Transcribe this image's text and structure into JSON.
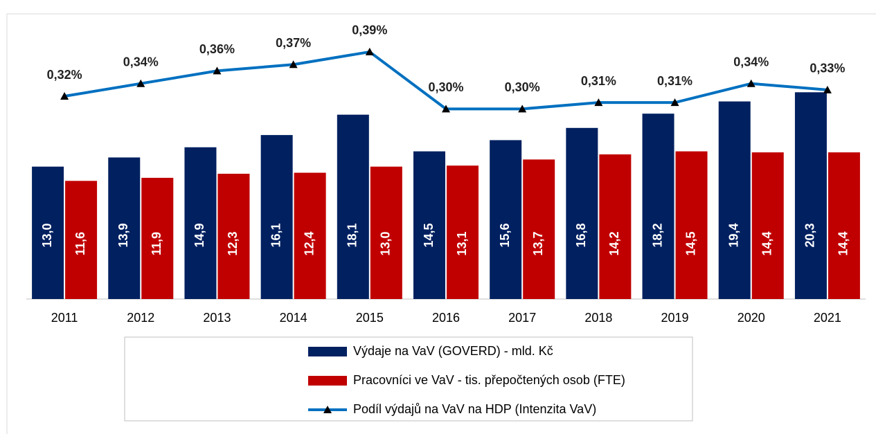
{
  "chart_data": {
    "type": "bar_line",
    "categories": [
      "2011",
      "2012",
      "2013",
      "2014",
      "2015",
      "2016",
      "2017",
      "2018",
      "2019",
      "2020",
      "2021"
    ],
    "series": [
      {
        "name": "Výdaje na VaV (GOVERD) - mld. Kč",
        "color": "#002060",
        "kind": "bar",
        "values": [
          13.0,
          13.9,
          14.9,
          16.1,
          18.1,
          14.5,
          15.6,
          16.8,
          18.2,
          19.4,
          20.3
        ],
        "value_labels": [
          "13,0",
          "13,9",
          "14,9",
          "16,1",
          "18,1",
          "14,5",
          "15,6",
          "16,8",
          "18,2",
          "19,4",
          "20,3"
        ]
      },
      {
        "name": "Pracovníci ve VaV - tis. přepočtených osob (FTE)",
        "color": "#c00000",
        "kind": "bar",
        "values": [
          11.6,
          11.9,
          12.3,
          12.4,
          13.0,
          13.1,
          13.7,
          14.2,
          14.5,
          14.4,
          14.4
        ],
        "value_labels": [
          "11,6",
          "11,9",
          "12,3",
          "12,4",
          "13,0",
          "13,1",
          "13,7",
          "14,2",
          "14,5",
          "14,4",
          "14,4"
        ]
      },
      {
        "name": "Podíl výdajů na VaV na HDP (Intenzita VaV)",
        "color": "#0070c0",
        "kind": "line",
        "axis": "y2",
        "values": [
          0.32,
          0.34,
          0.36,
          0.37,
          0.39,
          0.3,
          0.3,
          0.31,
          0.31,
          0.34,
          0.33
        ],
        "value_labels": [
          "0,32%",
          "0,34%",
          "0,36%",
          "0,37%",
          "0,39%",
          "0,30%",
          "0,30%",
          "0,31%",
          "0,31%",
          "0,34%",
          "0,33%"
        ]
      }
    ],
    "ylim": [
      0,
      28
    ],
    "y2lim": [
      0,
      0.45
    ],
    "legend": "bottom"
  }
}
